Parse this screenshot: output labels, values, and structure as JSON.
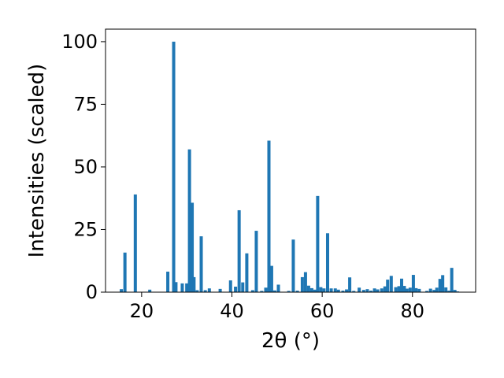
{
  "chart_data": {
    "type": "bar",
    "title": "",
    "xlabel": "2θ (°)",
    "ylabel": "Intensities (scaled)",
    "xlim": [
      12,
      94
    ],
    "ylim": [
      0,
      105
    ],
    "xticks": [
      20,
      40,
      60,
      80
    ],
    "yticks": [
      0,
      25,
      50,
      75,
      100
    ],
    "grid": false,
    "legend": "none",
    "bar_color": "#1f77b4",
    "bar_width": 0.7,
    "x": [
      15.5,
      16.3,
      18.6,
      21.8,
      25.8,
      27.1,
      27.6,
      29.0,
      30.0,
      30.6,
      31.2,
      31.6,
      32.3,
      33.2,
      34.1,
      35.0,
      37.4,
      39.7,
      40.8,
      41.6,
      42.4,
      43.3,
      44.6,
      45.4,
      46.6,
      47.5,
      48.2,
      48.8,
      49.5,
      50.3,
      52.6,
      53.6,
      54.5,
      55.6,
      56.3,
      57.0,
      57.7,
      58.4,
      59.0,
      59.7,
      60.4,
      61.2,
      62.0,
      62.9,
      63.6,
      64.6,
      65.4,
      66.1,
      67.0,
      68.2,
      69.2,
      70.0,
      70.8,
      71.6,
      72.3,
      73.2,
      73.9,
      74.5,
      75.3,
      76.3,
      77.0,
      77.6,
      78.2,
      78.8,
      79.5,
      80.2,
      80.8,
      81.5,
      83.2,
      84.0,
      84.8,
      85.4,
      86.1,
      86.7,
      87.4,
      88.1,
      88.7,
      89.4,
      90.0
    ],
    "values": [
      1.2,
      15.8,
      39.0,
      1.0,
      8.2,
      100.0,
      4.0,
      3.5,
      3.5,
      57.0,
      35.7,
      6.0,
      0.8,
      22.3,
      0.8,
      1.5,
      1.3,
      4.7,
      2.2,
      32.7,
      3.9,
      15.5,
      0.8,
      24.5,
      0.5,
      1.8,
      60.5,
      10.5,
      0.7,
      3.0,
      0.5,
      21.0,
      0.6,
      6.0,
      8.0,
      2.6,
      1.6,
      1.0,
      38.4,
      2.0,
      1.5,
      23.5,
      1.5,
      1.5,
      1.0,
      0.6,
      1.1,
      5.9,
      0.5,
      1.8,
      0.9,
      1.2,
      0.6,
      1.5,
      1.1,
      1.5,
      2.3,
      5.0,
      6.5,
      2.0,
      2.4,
      5.4,
      2.5,
      1.4,
      1.8,
      6.9,
      1.6,
      1.3,
      0.5,
      1.4,
      0.9,
      1.8,
      5.3,
      6.8,
      1.9,
      0.6,
      9.7,
      0.9,
      0.3
    ]
  }
}
